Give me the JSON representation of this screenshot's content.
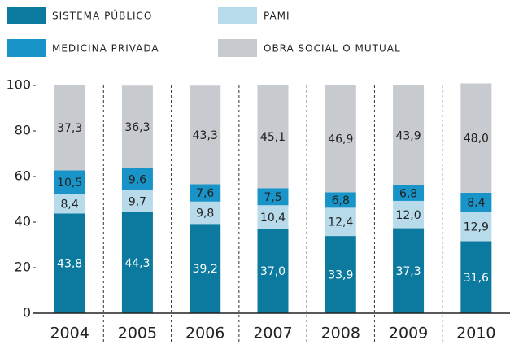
{
  "chart_data": {
    "type": "stacked_bar",
    "categories": [
      "2004",
      "2005",
      "2006",
      "2007",
      "2008",
      "2009",
      "2010"
    ],
    "series": [
      {
        "name": "SISTEMA PÚBLICO",
        "color": "#0b7a9e",
        "label_color": "#ffffff",
        "values": [
          43.8,
          44.3,
          39.2,
          37.0,
          33.9,
          37.3,
          31.6
        ],
        "value_labels": [
          "43,8",
          "44,3",
          "39,2",
          "37,0",
          "33,9",
          "37,3",
          "31,6"
        ]
      },
      {
        "name": "PAMI",
        "color": "#b8dbec",
        "label_color": "#222222",
        "values": [
          8.4,
          9.7,
          9.8,
          10.4,
          12.4,
          12.0,
          12.9
        ],
        "value_labels": [
          "8,4",
          "9,7",
          "9,8",
          "10,4",
          "12,4",
          "12,0",
          "12,9"
        ]
      },
      {
        "name": "MEDICINA PRIVADA",
        "color": "#1994c9",
        "label_color": "#222222",
        "values": [
          10.5,
          9.6,
          7.6,
          7.5,
          6.8,
          6.8,
          8.4
        ],
        "value_labels": [
          "10,5",
          "9,6",
          "7,6",
          "7,5",
          "6,8",
          "6,8",
          "8,4"
        ]
      },
      {
        "name": "OBRA SOCIAL O MUTUAL",
        "color": "#c7cacf",
        "label_color": "#222222",
        "values": [
          37.3,
          36.3,
          43.3,
          45.1,
          46.9,
          43.9,
          48.0
        ],
        "value_labels": [
          "37,3",
          "36,3",
          "43,3",
          "45,1",
          "46,9",
          "43,9",
          "48,0"
        ]
      }
    ],
    "ylim": [
      0,
      100
    ],
    "yticks": [
      0,
      20,
      40,
      60,
      80,
      100
    ]
  }
}
